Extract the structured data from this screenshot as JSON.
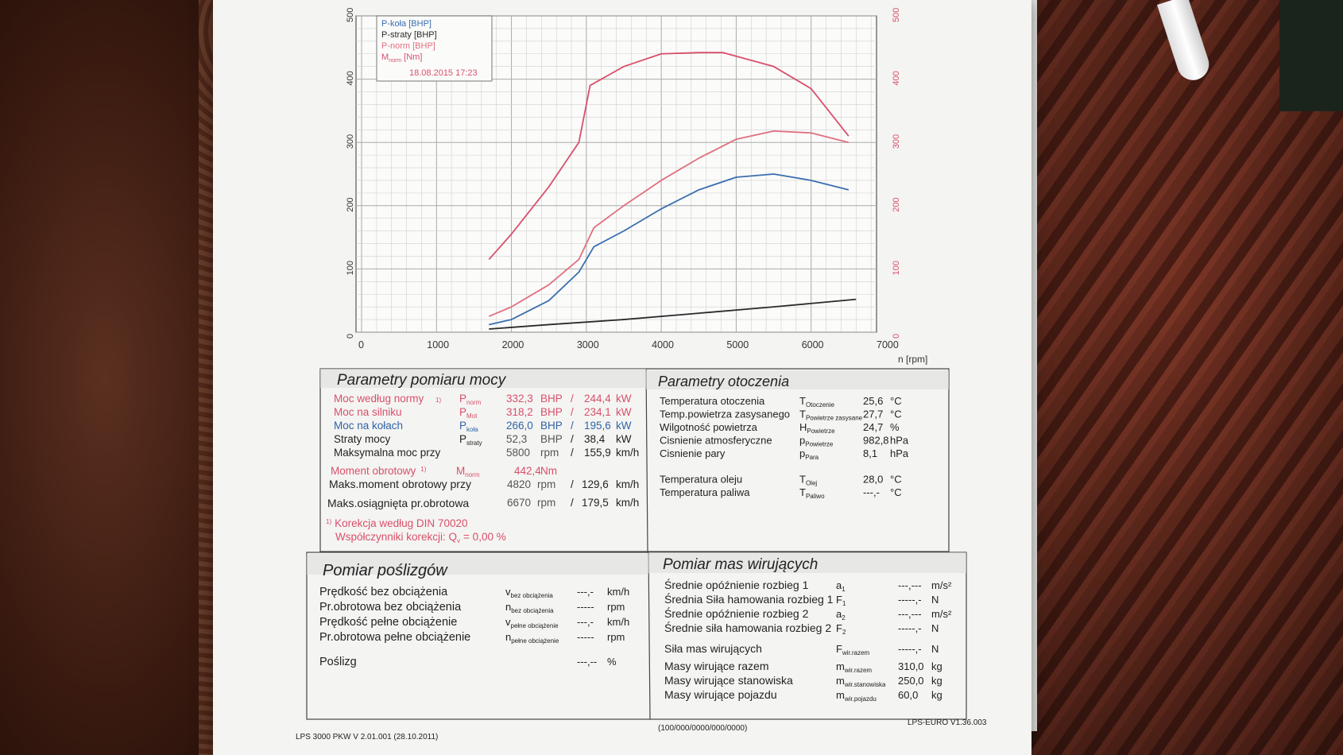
{
  "chart": {
    "legend": [
      {
        "label": "P-koła [BHP]",
        "color": "#3a6fb0"
      },
      {
        "label": "P-straty [BHP]",
        "color": "#2b2b2b"
      },
      {
        "label": "P-norm [BHP]",
        "color": "#e0707f"
      },
      {
        "label_main": "M",
        "label_sub": "norm",
        "label_tail": " [Nm]",
        "color": "#d8506a"
      }
    ],
    "legend_date": "18.08.2015 17:23",
    "x_ticks": [
      "0",
      "1000",
      "2000",
      "3000",
      "4000",
      "5000",
      "6000",
      "7000"
    ],
    "x_unit": "n [rpm]",
    "y_left_ticks": [
      "0",
      "100",
      "200",
      "300",
      "400",
      "500"
    ],
    "y_right_ticks": [
      "0",
      "100",
      "200",
      "300",
      "400",
      "500"
    ]
  },
  "chart_data": {
    "type": "line",
    "xlim": [
      0,
      7000
    ],
    "ylim_left": [
      0,
      500
    ],
    "ylim_right": [
      0,
      500
    ],
    "series": [
      {
        "name": "P-norm [BHP]",
        "color": "#e0707f",
        "x": [
          1700,
          2000,
          2500,
          2900,
          3100,
          3500,
          4000,
          4500,
          5000,
          5500,
          6000,
          6500
        ],
        "y": [
          25,
          40,
          75,
          115,
          165,
          200,
          240,
          275,
          305,
          318,
          315,
          300
        ]
      },
      {
        "name": "P-koła [BHP]",
        "color": "#3a6fb0",
        "x": [
          1700,
          2000,
          2500,
          2900,
          3100,
          3500,
          4000,
          4500,
          5000,
          5500,
          6000,
          6500
        ],
        "y": [
          12,
          20,
          50,
          95,
          135,
          160,
          195,
          225,
          245,
          250,
          240,
          225
        ]
      },
      {
        "name": "P-straty [BHP]",
        "color": "#2b2b2b",
        "x": [
          1700,
          2500,
          3500,
          4500,
          5500,
          6600
        ],
        "y": [
          5,
          12,
          20,
          30,
          40,
          52
        ]
      },
      {
        "name": "M [Nm]",
        "color": "#d8506a",
        "x": [
          1700,
          2000,
          2500,
          2900,
          3050,
          3500,
          4000,
          4500,
          4820,
          5500,
          6000,
          6500
        ],
        "y": [
          115,
          155,
          230,
          300,
          390,
          420,
          440,
          442,
          442,
          420,
          385,
          310
        ]
      }
    ]
  },
  "power": {
    "title": "Parametry pomiaru mocy",
    "rows": [
      {
        "label": "Moc według normy",
        "sup": "1)",
        "sym": "P",
        "sub": "norm",
        "v1": "332,3",
        "u1": "BHP",
        "sep": "/",
        "v2": "244,4",
        "u2": "kW",
        "color": "#d8506a"
      },
      {
        "label": "Moc na silniku",
        "sup": "",
        "sym": "P",
        "sub": "Mot",
        "v1": "318,2",
        "u1": "BHP",
        "sep": "/",
        "v2": "234,1",
        "u2": "kW",
        "color": "#d8506a"
      },
      {
        "label": "Moc na kołach",
        "sup": "",
        "sym": "P",
        "sub": "koła",
        "v1": "266,0",
        "u1": "BHP",
        "sep": "/",
        "v2": "195,6",
        "u2": "kW",
        "color": "#2f64a8"
      },
      {
        "label": "Straty mocy",
        "sup": "",
        "sym": "P",
        "sub": "straty",
        "v1": "52,3",
        "u1": "BHP",
        "sep": "/",
        "v2": "38,4",
        "u2": "kW",
        "color": "#222"
      },
      {
        "label": "Maksymalna moc przy",
        "sup": "",
        "sym": "",
        "sub": "",
        "v1": "5800",
        "u1": "rpm",
        "sep": "/",
        "v2": "155,9",
        "u2": "km/h",
        "color": "#222"
      }
    ],
    "torque_label": "Moment obrotowy",
    "torque_sup": "1)",
    "torque_sym": "M",
    "torque_sub": "norm",
    "torque_value": "442,4",
    "torque_unit": "Nm",
    "max_torque": {
      "label": "Maks.moment obrotowy przy",
      "v1": "4820",
      "u1": "rpm",
      "sep": "/",
      "v2": "129,6",
      "u2": "km/h"
    },
    "max_speed": {
      "label": "Maks.osiągnięta pr.obrotowa",
      "v1": "6670",
      "u1": "rpm",
      "sep": "/",
      "v2": "179,5",
      "u2": "km/h"
    },
    "correction_sup": "1)",
    "correction_label": "Korekcja według DIN 70020",
    "coef_label": "Współczynniki korekcji: Q",
    "coef_sub": "v",
    "coef_value": "= 0,00 %"
  },
  "env": {
    "title": "Parametry otoczenia",
    "rows": [
      {
        "label": "Temperatura otoczenia",
        "sym": "T",
        "sub": "Otoczenie",
        "value": "25,6",
        "unit": "°C"
      },
      {
        "label": "Temp.powietrza zasysanego",
        "sym": "T",
        "sub": "Powietrze zasysane",
        "value": "27,7",
        "unit": "°C"
      },
      {
        "label": "Wilgotność powietrza",
        "sym": "H",
        "sub": "Powietrze",
        "value": "24,7",
        "unit": "%"
      },
      {
        "label": "Cisnienie atmosferyczne",
        "sym": "p",
        "sub": "Powietrze",
        "value": "982,8",
        "unit": "hPa"
      },
      {
        "label": "Cisnienie pary",
        "sym": "p",
        "sub": "Para",
        "value": "8,1",
        "unit": "hPa"
      },
      {
        "label": "Temperatura oleju",
        "sym": "T",
        "sub": "Olej",
        "value": "28,0",
        "unit": "°C"
      },
      {
        "label": "Temperatura paliwa",
        "sym": "T",
        "sub": "Paliwo",
        "value": "---,-",
        "unit": "°C"
      }
    ]
  },
  "slip": {
    "title": "Pomiar poślizgów",
    "rows": [
      {
        "label": "Prędkość bez obciążenia",
        "sym": "v",
        "sub": "bez obciążenia",
        "value": "---,-",
        "unit": "km/h"
      },
      {
        "label": "Pr.obrotowa bez obciążenia",
        "sym": "n",
        "sub": "bez obciążenia",
        "value": "-----",
        "unit": "rpm"
      },
      {
        "label": "Prędkość pełne obciążenie",
        "sym": "v",
        "sub": "pełne obciążenie",
        "value": "---,-",
        "unit": "km/h"
      },
      {
        "label": "Pr.obrotowa pełne obciążenie",
        "sym": "n",
        "sub": "pełne obciążenie",
        "value": "-----",
        "unit": "rpm"
      },
      {
        "label": "Poślizg",
        "sym": "",
        "sub": "",
        "value": "---,--",
        "unit": "%"
      }
    ]
  },
  "mass": {
    "title": "Pomiar mas wirujących",
    "rows": [
      {
        "label": "Średnie opóźnienie rozbieg 1",
        "sym": "a",
        "sub": "1",
        "value": "---,---",
        "unit": "m/s²"
      },
      {
        "label": "Średnia Siła hamowania rozbieg 1",
        "sym": "F",
        "sub": "1",
        "value": "-----,-",
        "unit": "N"
      },
      {
        "label": "Średnie opóźnienie rozbieg 2",
        "sym": "a",
        "sub": "2",
        "value": "---,---",
        "unit": "m/s²"
      },
      {
        "label": "Średnie siła hamowania rozbieg 2",
        "sym": "F",
        "sub": "2",
        "value": "-----,-",
        "unit": "N"
      },
      {
        "label": "Siła mas wirujących",
        "sym": "F",
        "sub": "wir.razem",
        "value": "-----,-",
        "unit": "N"
      },
      {
        "label": "Masy wirujące razem",
        "sym": "m",
        "sub": "wir.razem",
        "value": "310,0",
        "unit": "kg"
      },
      {
        "label": "Masy wirujące stanowiska",
        "sym": "m",
        "sub": "wir.stanowiska",
        "value": "250,0",
        "unit": "kg"
      },
      {
        "label": "Masy wirujące pojazdu",
        "sym": "m",
        "sub": "wir.pojazdu",
        "value": "60,0",
        "unit": "kg"
      }
    ]
  },
  "footer": {
    "left": "LPS 3000 PKW V 2.01.001 (28.10.2011)",
    "center": "(100/000/0000/000/0000)",
    "right": "LPS-EURO V1.36.003"
  }
}
